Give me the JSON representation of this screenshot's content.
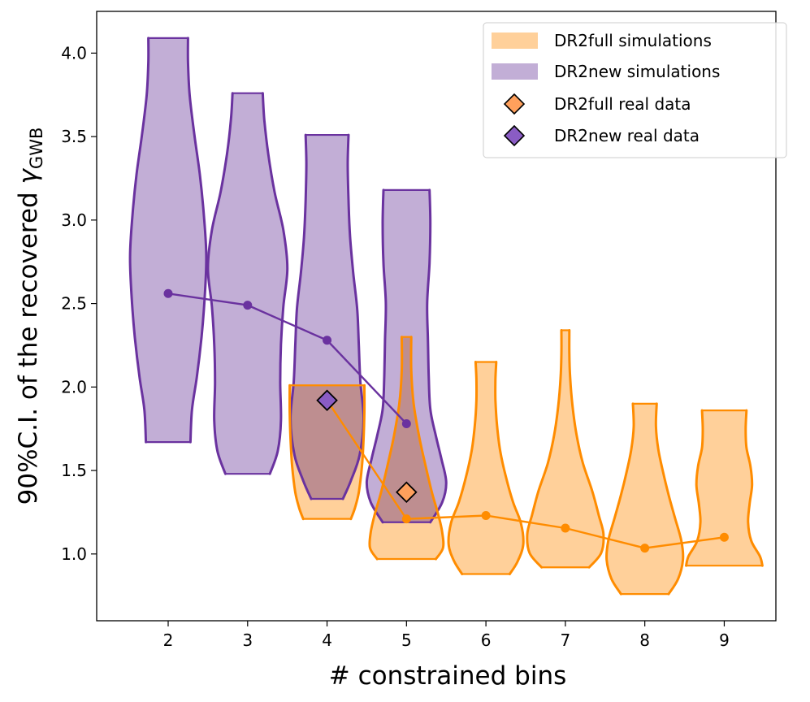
{
  "chart_data": {
    "type": "violin",
    "xlabel": "# constrained bins",
    "ylabel": "90%C.I. of the recovered ",
    "ylabel_symbol": "γ",
    "ylabel_subscript": "GWB",
    "xlim": [
      1.1,
      9.65
    ],
    "ylim": [
      0.6,
      4.25
    ],
    "xticks": [
      2,
      3,
      4,
      5,
      6,
      7,
      8,
      9
    ],
    "yticks": [
      1.0,
      1.5,
      2.0,
      2.5,
      3.0,
      3.5,
      4.0
    ],
    "colors": {
      "new_fill": "#c2aed6",
      "new_line": "#6a329f",
      "full_fill": "#ffd09a",
      "full_line": "#ff8c00",
      "overlap_fill": "#be8e90",
      "full_marker": "#ffa05c",
      "new_marker": "#8a5cc4"
    },
    "legend": {
      "position": "top-right",
      "entries": [
        {
          "label": "DR2full simulations"
        },
        {
          "label": "DR2new simulations"
        },
        {
          "label": "DR2full real data"
        },
        {
          "label": "DR2new real data"
        }
      ]
    },
    "series": [
      {
        "name": "DR2new simulations",
        "violins": [
          {
            "x": 2,
            "ymin": 1.67,
            "ymax": 4.09,
            "profile": [
              [
                0.0,
                0.28
              ],
              [
                0.08,
                0.3
              ],
              [
                0.16,
                0.36
              ],
              [
                0.26,
                0.42
              ],
              [
                0.36,
                0.46
              ],
              [
                0.46,
                0.48
              ],
              [
                0.56,
                0.45
              ],
              [
                0.66,
                0.4
              ],
              [
                0.76,
                0.33
              ],
              [
                0.86,
                0.27
              ],
              [
                0.94,
                0.25
              ],
              [
                1.0,
                0.25
              ]
            ]
          },
          {
            "x": 3,
            "ymin": 1.48,
            "ymax": 3.76,
            "profile": [
              [
                0.0,
                0.28
              ],
              [
                0.06,
                0.38
              ],
              [
                0.14,
                0.42
              ],
              [
                0.24,
                0.41
              ],
              [
                0.34,
                0.42
              ],
              [
                0.44,
                0.45
              ],
              [
                0.54,
                0.5
              ],
              [
                0.64,
                0.45
              ],
              [
                0.74,
                0.34
              ],
              [
                0.84,
                0.26
              ],
              [
                0.93,
                0.21
              ],
              [
                1.0,
                0.19
              ]
            ]
          },
          {
            "x": 4,
            "ymin": 1.33,
            "ymax": 3.51,
            "profile": [
              [
                0.0,
                0.2
              ],
              [
                0.05,
                0.3
              ],
              [
                0.12,
                0.41
              ],
              [
                0.22,
                0.46
              ],
              [
                0.32,
                0.42
              ],
              [
                0.42,
                0.4
              ],
              [
                0.52,
                0.38
              ],
              [
                0.62,
                0.33
              ],
              [
                0.72,
                0.29
              ],
              [
                0.82,
                0.27
              ],
              [
                0.92,
                0.26
              ],
              [
                1.0,
                0.27
              ]
            ]
          },
          {
            "x": 5,
            "ymin": 1.19,
            "ymax": 3.18,
            "profile": [
              [
                0.0,
                0.3
              ],
              [
                0.06,
                0.45
              ],
              [
                0.12,
                0.5
              ],
              [
                0.19,
                0.44
              ],
              [
                0.26,
                0.37
              ],
              [
                0.34,
                0.3
              ],
              [
                0.44,
                0.28
              ],
              [
                0.55,
                0.27
              ],
              [
                0.66,
                0.26
              ],
              [
                0.78,
                0.29
              ],
              [
                0.9,
                0.3
              ],
              [
                1.0,
                0.29
              ]
            ]
          }
        ],
        "median_x": [
          2,
          3,
          4,
          5
        ],
        "median_y": [
          2.56,
          2.49,
          2.28,
          1.78
        ]
      },
      {
        "name": "DR2full simulations",
        "violins": [
          {
            "x": 4,
            "ymin": 1.21,
            "ymax": 2.01,
            "profile": [
              [
                0.0,
                0.3
              ],
              [
                0.08,
                0.35
              ],
              [
                0.2,
                0.4
              ],
              [
                0.4,
                0.44
              ],
              [
                0.6,
                0.46
              ],
              [
                0.8,
                0.47
              ],
              [
                1.0,
                0.47
              ]
            ]
          },
          {
            "x": 5,
            "ymin": 0.97,
            "ymax": 2.3,
            "profile": [
              [
                0.0,
                0.37
              ],
              [
                0.05,
                0.46
              ],
              [
                0.12,
                0.45
              ],
              [
                0.2,
                0.4
              ],
              [
                0.3,
                0.32
              ],
              [
                0.42,
                0.24
              ],
              [
                0.55,
                0.16
              ],
              [
                0.7,
                0.09
              ],
              [
                0.85,
                0.06
              ],
              [
                1.0,
                0.06
              ]
            ]
          },
          {
            "x": 6,
            "ymin": 0.88,
            "ymax": 2.15,
            "profile": [
              [
                0.0,
                0.3
              ],
              [
                0.06,
                0.4
              ],
              [
                0.14,
                0.47
              ],
              [
                0.24,
                0.44
              ],
              [
                0.34,
                0.34
              ],
              [
                0.46,
                0.25
              ],
              [
                0.58,
                0.18
              ],
              [
                0.7,
                0.14
              ],
              [
                0.82,
                0.12
              ],
              [
                0.92,
                0.12
              ],
              [
                1.0,
                0.13
              ]
            ]
          },
          {
            "x": 7,
            "ymin": 0.92,
            "ymax": 2.34,
            "profile": [
              [
                0.0,
                0.3
              ],
              [
                0.06,
                0.45
              ],
              [
                0.14,
                0.48
              ],
              [
                0.22,
                0.42
              ],
              [
                0.32,
                0.34
              ],
              [
                0.44,
                0.22
              ],
              [
                0.56,
                0.14
              ],
              [
                0.68,
                0.09
              ],
              [
                0.8,
                0.06
              ],
              [
                0.9,
                0.05
              ],
              [
                1.0,
                0.05
              ]
            ]
          },
          {
            "x": 8,
            "ymin": 0.76,
            "ymax": 1.9,
            "profile": [
              [
                0.0,
                0.3
              ],
              [
                0.08,
                0.42
              ],
              [
                0.18,
                0.48
              ],
              [
                0.28,
                0.46
              ],
              [
                0.4,
                0.38
              ],
              [
                0.52,
                0.3
              ],
              [
                0.64,
                0.23
              ],
              [
                0.76,
                0.17
              ],
              [
                0.88,
                0.14
              ],
              [
                1.0,
                0.15
              ]
            ]
          },
          {
            "x": 9,
            "ymin": 0.93,
            "ymax": 1.86,
            "profile": [
              [
                0.0,
                0.48
              ],
              [
                0.06,
                0.45
              ],
              [
                0.16,
                0.34
              ],
              [
                0.28,
                0.3
              ],
              [
                0.4,
                0.32
              ],
              [
                0.52,
                0.35
              ],
              [
                0.64,
                0.33
              ],
              [
                0.76,
                0.28
              ],
              [
                0.88,
                0.27
              ],
              [
                1.0,
                0.28
              ]
            ]
          }
        ],
        "median_x": [
          4,
          5,
          6,
          7,
          8,
          9
        ],
        "median_y": [
          1.92,
          1.21,
          1.23,
          1.155,
          1.035,
          1.1
        ]
      }
    ],
    "real_data": [
      {
        "name": "DR2full real data",
        "x": 5,
        "y": 1.37
      },
      {
        "name": "DR2new real data",
        "x": 4,
        "y": 1.92
      }
    ]
  }
}
